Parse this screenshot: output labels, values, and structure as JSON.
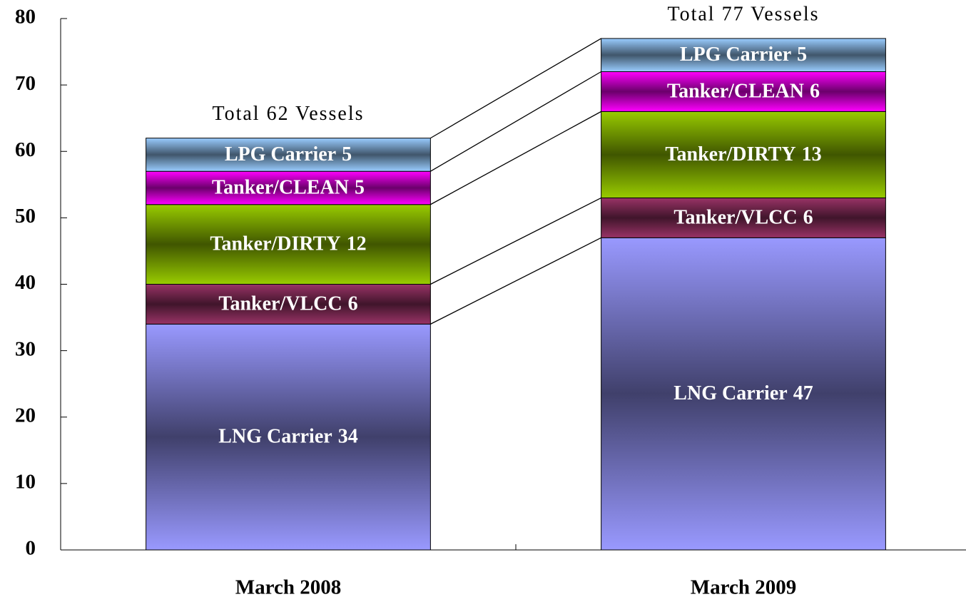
{
  "chart_data": {
    "type": "stacked_bar",
    "categories": [
      "March 2008",
      "March 2009"
    ],
    "series": [
      {
        "name": "LNG Carrier",
        "color": "#9999ff",
        "values": [
          34,
          47
        ]
      },
      {
        "name": "Tanker/VLCC",
        "color": "#993366",
        "values": [
          6,
          6
        ]
      },
      {
        "name": "Tanker/DIRTY",
        "color": "#99cc00",
        "values": [
          12,
          13
        ]
      },
      {
        "name": "Tanker/CLEAN",
        "color": "#ff00ff",
        "values": [
          5,
          6
        ]
      },
      {
        "name": "LPG Carrier",
        "color": "#99ccff",
        "values": [
          5,
          5
        ]
      }
    ],
    "annotations": [
      "Total 62 Vessels",
      "Total 77 Vessels"
    ],
    "ylim": [
      0,
      80
    ],
    "yticks": [
      0,
      10,
      20,
      30,
      40,
      50,
      60,
      70,
      80
    ],
    "grid": false
  }
}
